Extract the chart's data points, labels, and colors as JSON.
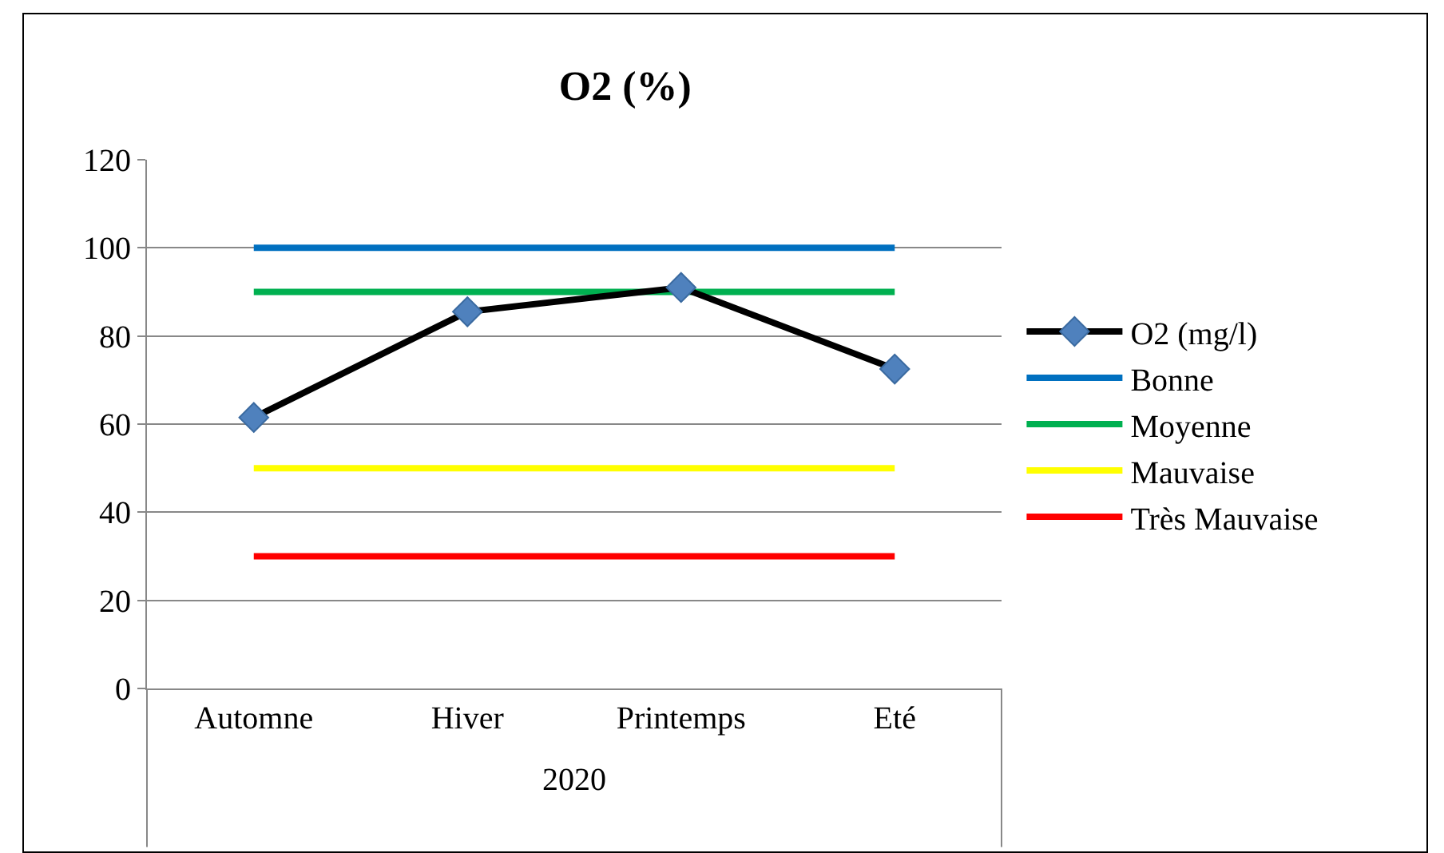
{
  "chart_data": {
    "type": "line",
    "title": "O2 (%)",
    "xlabel": "2020",
    "categories": [
      "Automne",
      "Hiver",
      "Printemps",
      "Eté"
    ],
    "series": [
      {
        "name": "O2 (mg/l)",
        "color": "#000000",
        "marker": "diamond",
        "values": [
          61.5,
          85.5,
          91,
          72.5
        ]
      },
      {
        "name": "Bonne",
        "color": "#0070c0",
        "marker": "none",
        "values": [
          100,
          100,
          100,
          100
        ]
      },
      {
        "name": "Moyenne",
        "color": "#00b050",
        "marker": "none",
        "values": [
          90,
          90,
          90,
          90
        ]
      },
      {
        "name": "Mauvaise",
        "color": "#ffff00",
        "marker": "none",
        "values": [
          50,
          50,
          50,
          50
        ]
      },
      {
        "name": "Très Mauvaise",
        "color": "#ff0000",
        "marker": "none",
        "values": [
          30,
          30,
          30,
          30
        ]
      }
    ],
    "ylim": [
      0,
      120
    ],
    "yticks": [
      0,
      20,
      40,
      60,
      80,
      100,
      120
    ],
    "grid": "y",
    "legend": "right",
    "line_style": "solid"
  }
}
